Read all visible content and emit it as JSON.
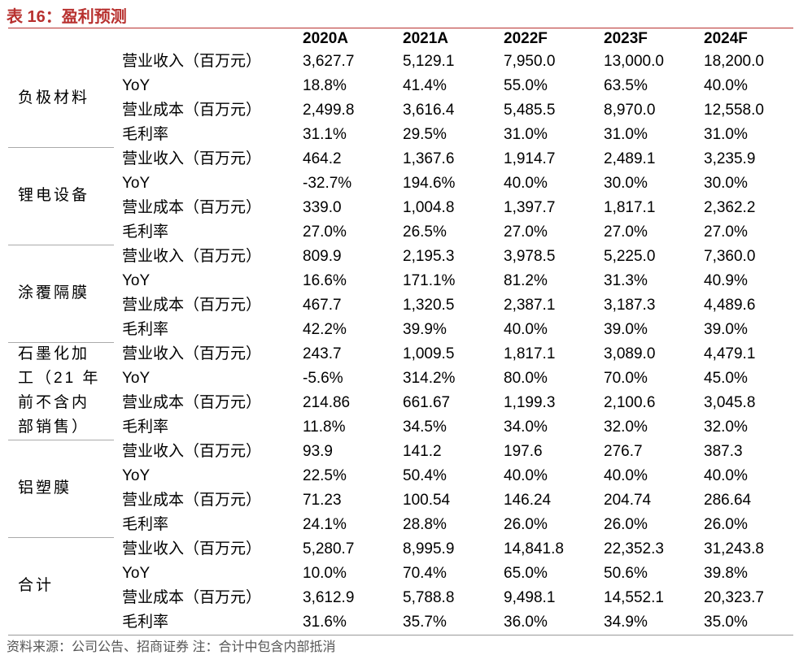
{
  "header": {
    "title": "表 16：盈利预测"
  },
  "table": {
    "columns": [
      "2020A",
      "2021A",
      "2022F",
      "2023F",
      "2024F"
    ],
    "groups": [
      {
        "name": "负极材料",
        "rows": [
          {
            "label": "营业收入（百万元）",
            "values": [
              "3,627.7",
              "5,129.1",
              "7,950.0",
              "13,000.0",
              "18,200.0"
            ]
          },
          {
            "label": "YoY",
            "values": [
              "18.8%",
              "41.4%",
              "55.0%",
              "63.5%",
              "40.0%"
            ]
          },
          {
            "label": "营业成本（百万元）",
            "values": [
              "2,499.8",
              "3,616.4",
              "5,485.5",
              "8,970.0",
              "12,558.0"
            ]
          },
          {
            "label": "毛利率",
            "values": [
              "31.1%",
              "29.5%",
              "31.0%",
              "31.0%",
              "31.0%"
            ]
          }
        ]
      },
      {
        "name": "锂电设备",
        "rows": [
          {
            "label": "营业收入（百万元）",
            "values": [
              "464.2",
              "1,367.6",
              "1,914.7",
              "2,489.1",
              "3,235.9"
            ]
          },
          {
            "label": "YoY",
            "values": [
              "-32.7%",
              "194.6%",
              "40.0%",
              "30.0%",
              "30.0%"
            ]
          },
          {
            "label": "营业成本（百万元）",
            "values": [
              "339.0",
              "1,004.8",
              "1,397.7",
              "1,817.1",
              "2,362.2"
            ]
          },
          {
            "label": "毛利率",
            "values": [
              "27.0%",
              "26.5%",
              "27.0%",
              "27.0%",
              "27.0%"
            ]
          }
        ]
      },
      {
        "name": "涂覆隔膜",
        "rows": [
          {
            "label": "营业收入（百万元）",
            "values": [
              "809.9",
              "2,195.3",
              "3,978.5",
              "5,225.0",
              "7,360.0"
            ]
          },
          {
            "label": "YoY",
            "values": [
              "16.6%",
              "171.1%",
              "81.2%",
              "31.3%",
              "40.9%"
            ]
          },
          {
            "label": "营业成本（百万元）",
            "values": [
              "467.7",
              "1,320.5",
              "2,387.1",
              "3,187.3",
              "4,489.6"
            ]
          },
          {
            "label": "毛利率",
            "values": [
              "42.2%",
              "39.9%",
              "40.0%",
              "39.0%",
              "39.0%"
            ]
          }
        ]
      },
      {
        "name": "石墨化加\n工（21 年\n前不含内\n部销售）",
        "rows": [
          {
            "label": "营业收入（百万元）",
            "values": [
              "243.7",
              "1,009.5",
              "1,817.1",
              "3,089.0",
              "4,479.1"
            ]
          },
          {
            "label": "YoY",
            "values": [
              "-5.6%",
              "314.2%",
              "80.0%",
              "70.0%",
              "45.0%"
            ]
          },
          {
            "label": "营业成本（百万元）",
            "values": [
              "214.86",
              "661.67",
              "1,199.3",
              "2,100.6",
              "3,045.8"
            ]
          },
          {
            "label": "毛利率",
            "values": [
              "11.8%",
              "34.5%",
              "34.0%",
              "32.0%",
              "32.0%"
            ]
          }
        ]
      },
      {
        "name": "铝塑膜",
        "rows": [
          {
            "label": "营业收入（百万元）",
            "values": [
              "93.9",
              "141.2",
              "197.6",
              "276.7",
              "387.3"
            ]
          },
          {
            "label": "YoY",
            "values": [
              "22.5%",
              "50.4%",
              "40.0%",
              "40.0%",
              "40.0%"
            ]
          },
          {
            "label": "营业成本（百万元）",
            "values": [
              "71.23",
              "100.54",
              "146.24",
              "204.74",
              "286.64"
            ]
          },
          {
            "label": "毛利率",
            "values": [
              "24.1%",
              "28.8%",
              "26.0%",
              "26.0%",
              "26.0%"
            ]
          }
        ]
      },
      {
        "name": "合计",
        "rows": [
          {
            "label": "营业收入（百万元）",
            "values": [
              "5,280.7",
              "8,995.9",
              "14,841.8",
              "22,352.3",
              "31,243.8"
            ]
          },
          {
            "label": "YoY",
            "values": [
              "10.0%",
              "70.4%",
              "65.0%",
              "50.6%",
              "39.8%"
            ]
          },
          {
            "label": "营业成本（百万元）",
            "values": [
              "3,612.9",
              "5,788.8",
              "9,498.1",
              "14,552.1",
              "20,323.7"
            ]
          },
          {
            "label": "毛利率",
            "values": [
              "31.6%",
              "35.7%",
              "36.0%",
              "34.9%",
              "35.0%"
            ]
          }
        ]
      }
    ]
  },
  "footer": {
    "source": "资料来源：公司公告、招商证券 注：合计中包含内部抵消"
  }
}
